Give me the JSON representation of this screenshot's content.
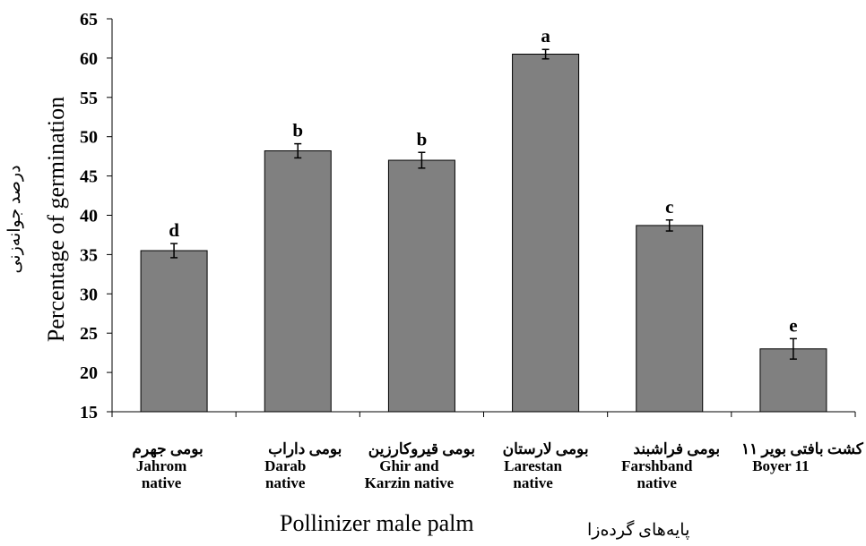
{
  "chart_data": {
    "type": "bar",
    "ylabel": "Percentage of germination",
    "ylabel_alt": "درصد جوانه‌زنی",
    "xlabel": "Pollinizer male palm",
    "xlabel_alt": "پایه‌های گرده‌زا",
    "ylim": [
      15,
      65
    ],
    "yticks": [
      "15",
      "20",
      "25",
      "30",
      "35",
      "40",
      "45",
      "50",
      "55",
      "60",
      "65"
    ],
    "categories": [
      {
        "label_fa": "بومی جهرم",
        "label_en_1": "Jahrom",
        "label_en_2": "native"
      },
      {
        "label_fa": "بومی داراب",
        "label_en_1": "Darab",
        "label_en_2": "native"
      },
      {
        "label_fa": "بومی قیروکارزین",
        "label_en_1": "Ghir and",
        "label_en_2": "Karzin native"
      },
      {
        "label_fa": "بومی لارستان",
        "label_en_1": "Larestan",
        "label_en_2": "native"
      },
      {
        "label_fa": "بومی فراشبند",
        "label_en_1": "Farshband",
        "label_en_2": "native"
      },
      {
        "label_fa": "کشت بافتی بویر ۱۱",
        "label_en_1": "Boyer 11",
        "label_en_2": ""
      }
    ],
    "values": [
      35.5,
      48.2,
      47.0,
      60.5,
      38.7,
      23.0
    ],
    "errors": [
      0.9,
      0.9,
      1.0,
      0.6,
      0.7,
      1.3
    ],
    "significance": [
      "d",
      "b",
      "b",
      "a",
      "c",
      "e"
    ],
    "bar_color": "#808080",
    "grid": false,
    "legend": "none"
  }
}
